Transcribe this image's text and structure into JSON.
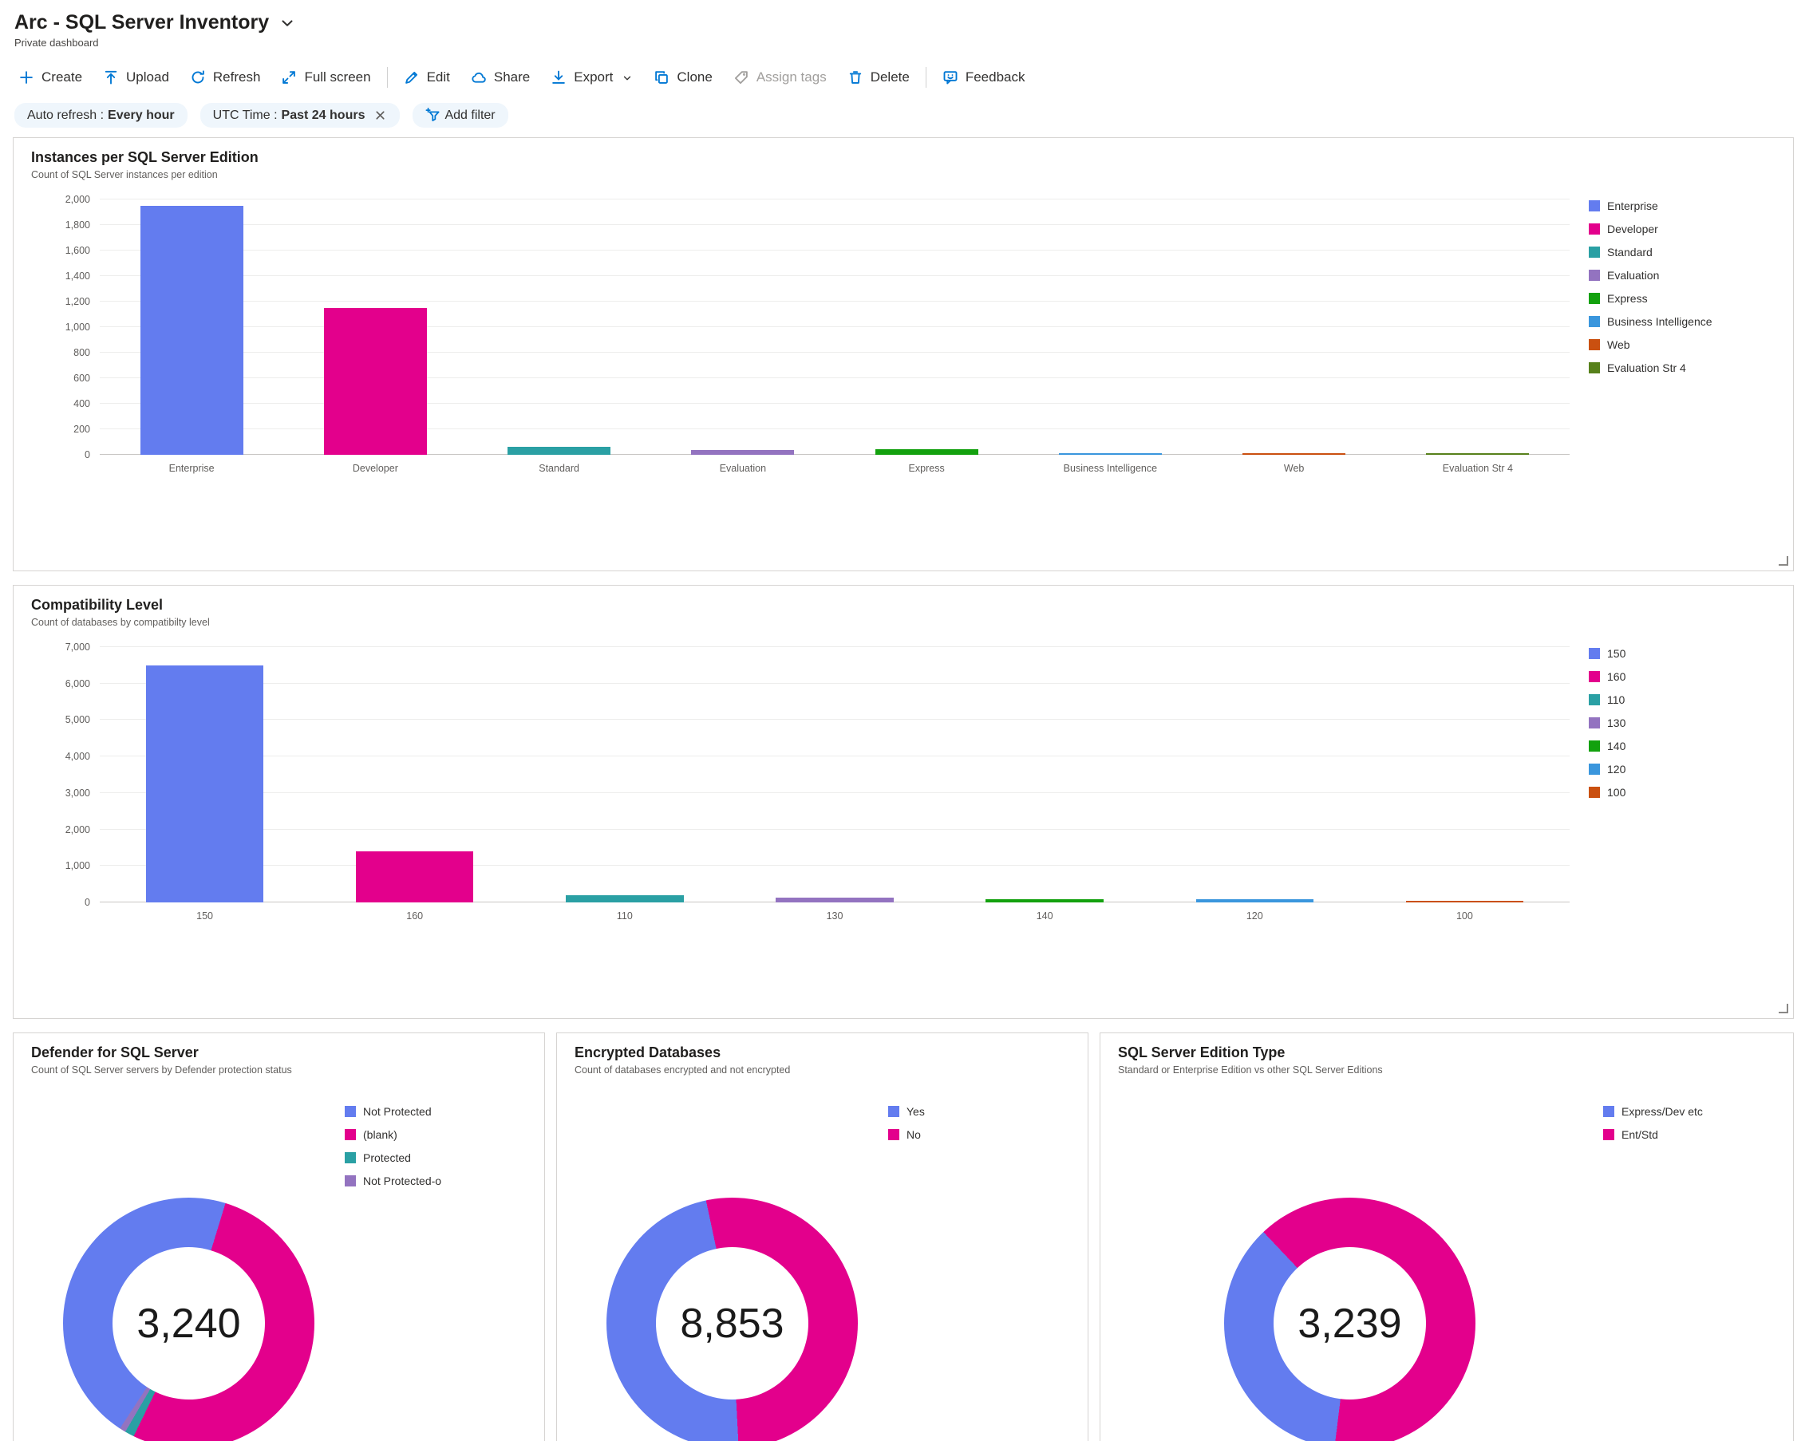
{
  "header": {
    "title": "Arc - SQL Server Inventory",
    "subtitle": "Private dashboard"
  },
  "toolbar": {
    "items": [
      {
        "label": "Create"
      },
      {
        "label": "Upload"
      },
      {
        "label": "Refresh"
      },
      {
        "label": "Full screen"
      },
      {
        "label": "Edit"
      },
      {
        "label": "Share"
      },
      {
        "label": "Export"
      },
      {
        "label": "Clone"
      },
      {
        "label": "Assign tags"
      },
      {
        "label": "Delete"
      },
      {
        "label": "Feedback"
      }
    ]
  },
  "filters": {
    "pills": [
      {
        "label": "Auto refresh :",
        "value": "Every hour"
      },
      {
        "label": "UTC Time :",
        "value": "Past 24 hours"
      }
    ],
    "add_filter_label": "Add filter"
  },
  "colors": {
    "accent": "#0078D4",
    "blue": "#637CEF",
    "magenta": "#E3008C",
    "teal": "#2AA0A4",
    "purple": "#9373C0",
    "green": "#13A10E",
    "lightblue": "#3A96DD",
    "orange": "#CA5010",
    "darkgreen": "#57811B"
  },
  "chart_data": {
    "editions": {
      "type": "bar",
      "title": "Instances per SQL Server Edition",
      "subtitle": "Count of SQL Server instances per edition",
      "ymax": 2000,
      "ystep": 200,
      "categories": [
        "Enterprise",
        "Developer",
        "Standard",
        "Evaluation",
        "Express",
        "Business Intelligence",
        "Web",
        "Evaluation Str 4"
      ],
      "values": [
        1950,
        1150,
        60,
        40,
        45,
        8,
        5,
        3
      ],
      "colors": [
        "#637CEF",
        "#E3008C",
        "#2AA0A4",
        "#9373C0",
        "#13A10E",
        "#3A96DD",
        "#CA5010",
        "#57811B"
      ],
      "legend": [
        "Enterprise",
        "Developer",
        "Standard",
        "Evaluation",
        "Express",
        "Business Intelligence",
        "Web",
        "Evaluation Str 4"
      ]
    },
    "compatibility": {
      "type": "bar",
      "title": "Compatibility Level",
      "subtitle": "Count of databases by compatibilty level",
      "ymax": 7000,
      "ystep": 1000,
      "categories": [
        "150",
        "160",
        "110",
        "130",
        "140",
        "120",
        "100"
      ],
      "values": [
        6500,
        1400,
        200,
        130,
        95,
        80,
        15
      ],
      "colors": [
        "#637CEF",
        "#E3008C",
        "#2AA0A4",
        "#9373C0",
        "#13A10E",
        "#3A96DD",
        "#CA5010"
      ],
      "legend": [
        "150",
        "160",
        "110",
        "130",
        "140",
        "120",
        "100"
      ]
    },
    "defender": {
      "type": "donut",
      "title": "Defender for SQL Server",
      "subtitle": "Count of SQL Server servers by Defender protection status",
      "center_value": "3,240",
      "start_deg": 17,
      "draw_order": [
        1,
        2,
        3,
        0
      ],
      "segments": [
        {
          "label": "Not Protected",
          "color": "#637CEF",
          "pct": 45.5
        },
        {
          "label": "(blank)",
          "color": "#E3008C",
          "pct": 52.5
        },
        {
          "label": "Protected",
          "color": "#2AA0A4",
          "pct": 1.2
        },
        {
          "label": "Not Protected-o",
          "color": "#9373C0",
          "pct": 0.8
        }
      ]
    },
    "encrypted": {
      "type": "donut",
      "title": "Encrypted Databases",
      "subtitle": "Count of databases encrypted and not encrypted",
      "center_value": "8,853",
      "start_deg": -12,
      "draw_order": [
        1,
        0
      ],
      "segments": [
        {
          "label": "Yes",
          "color": "#637CEF",
          "pct": 47.5
        },
        {
          "label": "No",
          "color": "#E3008C",
          "pct": 52.5
        }
      ]
    },
    "edition_type": {
      "type": "donut",
      "title": "SQL Server Edition Type",
      "subtitle": "Standard or Enterprise Edition vs other SQL Server Editions",
      "center_value": "3,239",
      "start_deg": 187,
      "draw_order": [
        0,
        1
      ],
      "segments": [
        {
          "label": "Express/Dev etc",
          "color": "#637CEF",
          "pct": 36
        },
        {
          "label": "Ent/Std",
          "color": "#E3008C",
          "pct": 64
        }
      ]
    }
  }
}
